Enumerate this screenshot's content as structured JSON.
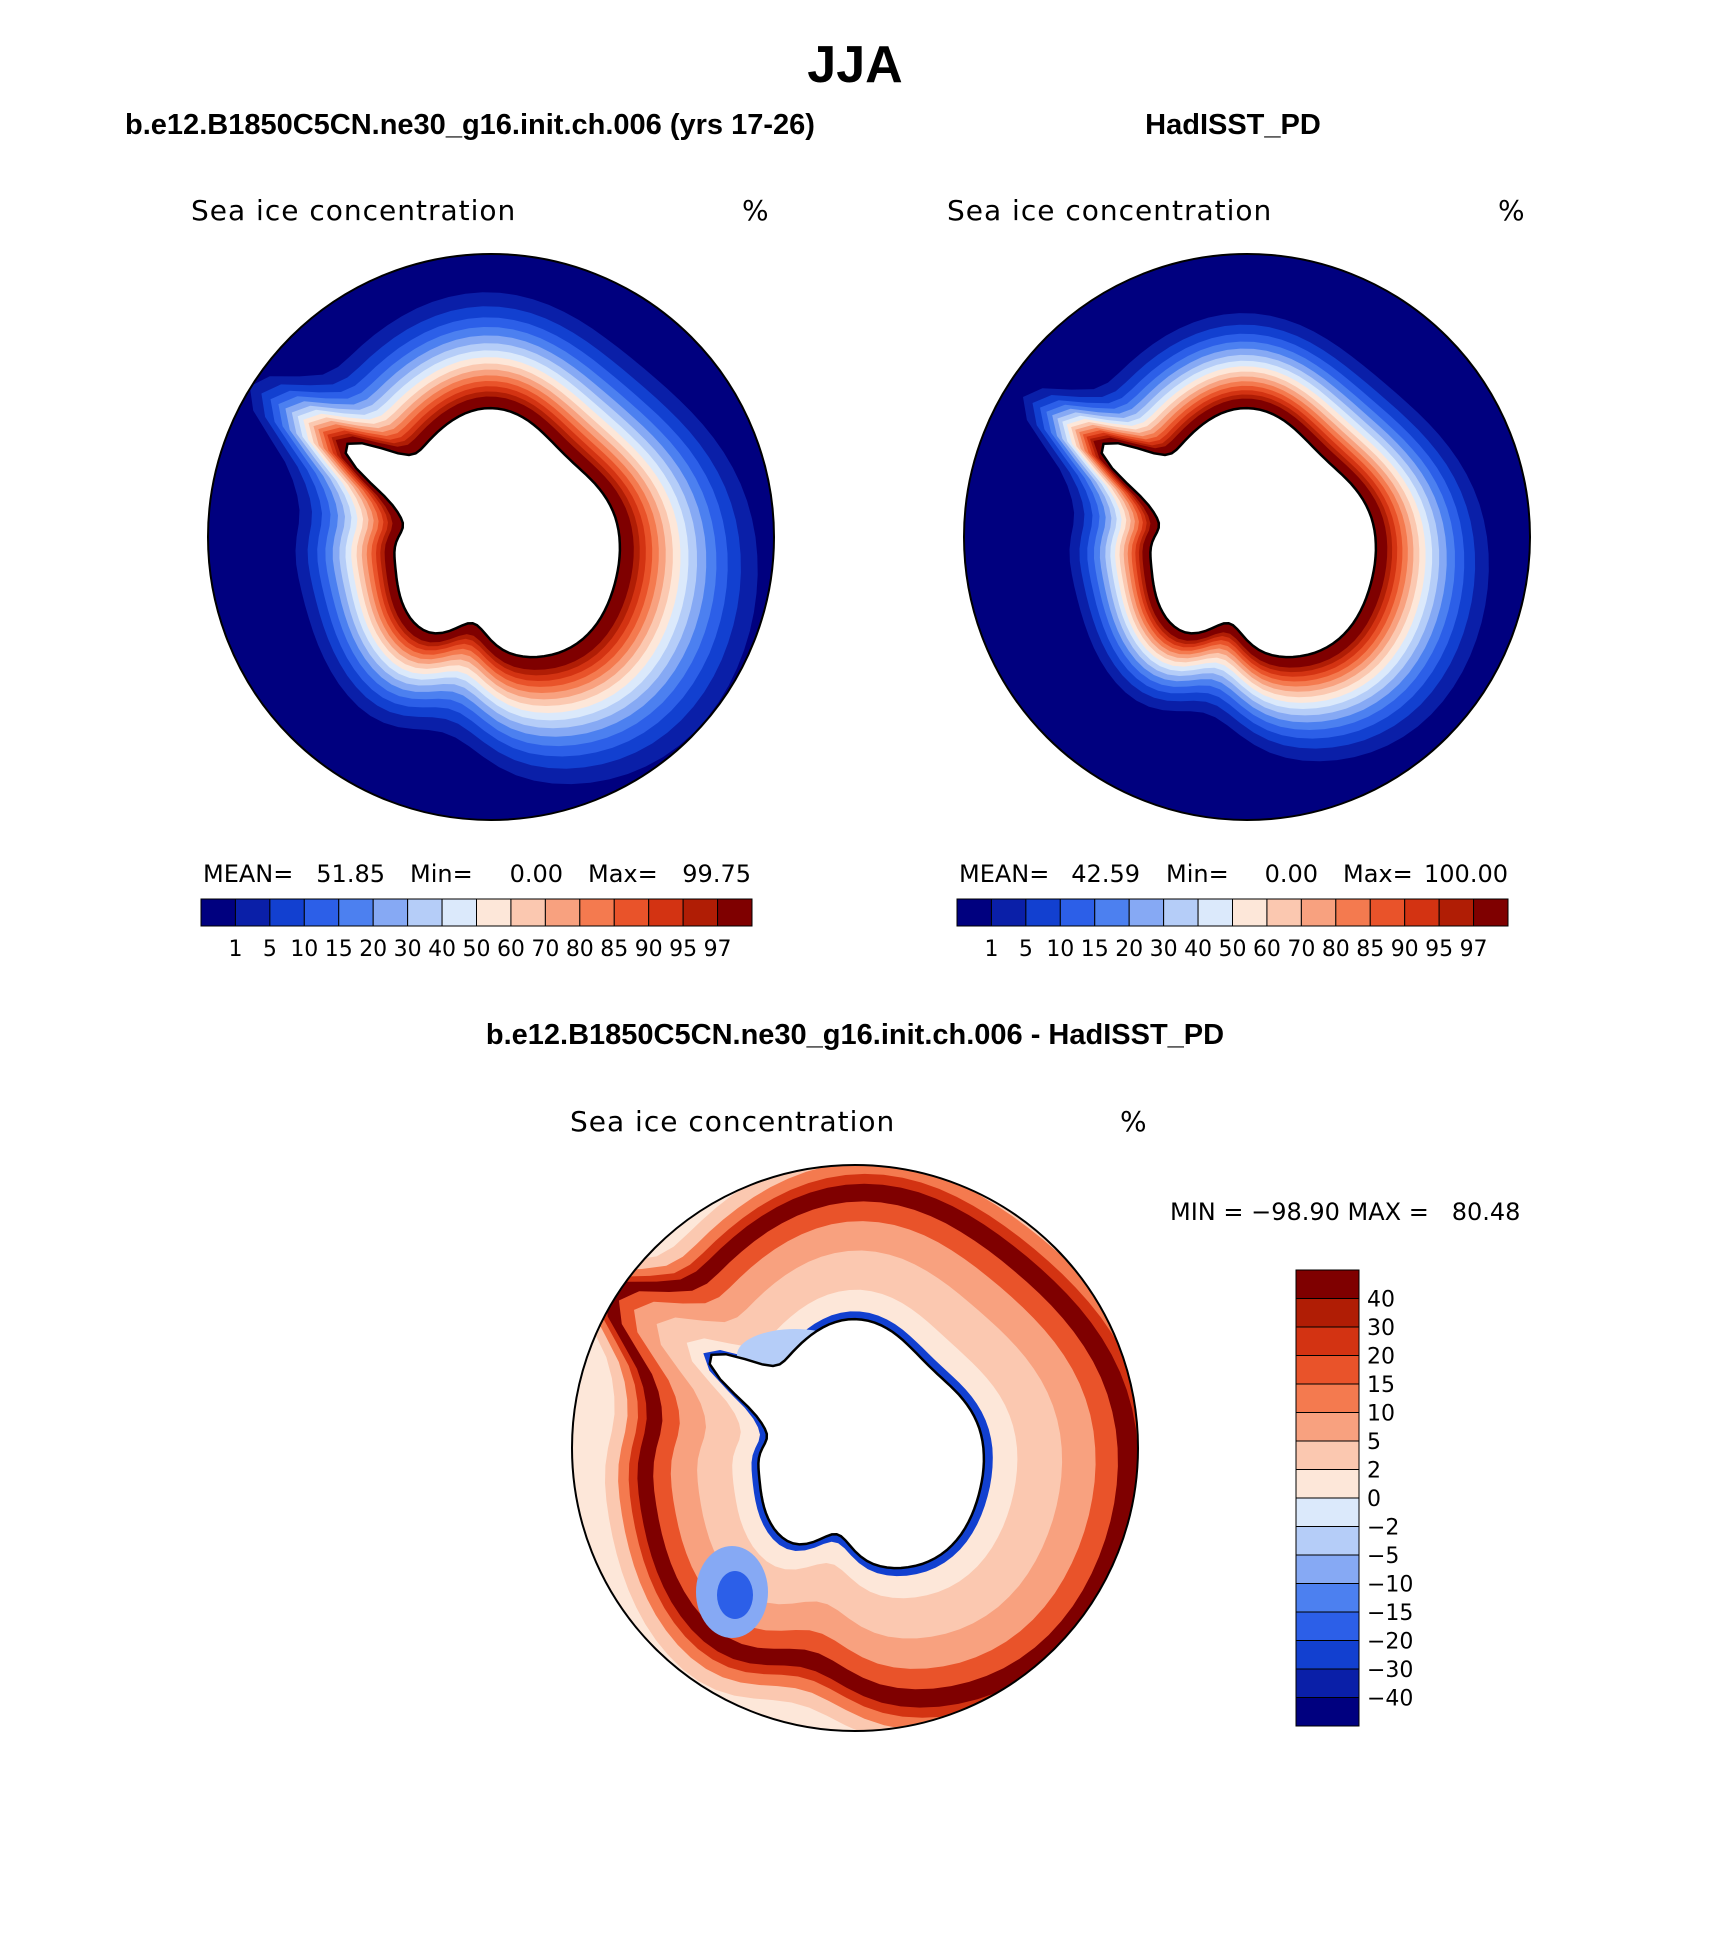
{
  "figure": {
    "title": "JJA",
    "panels": [
      {
        "id": "model",
        "subtitle": "b.e12.B1850C5CN.ne30_g16.init.ch.006 (yrs 17-26)",
        "left_label": "Sea ice concentration",
        "right_label": "%",
        "stats": {
          "mean_label": "MEAN=",
          "mean": "51.85",
          "min_label": "Min=",
          "min": "0.00",
          "max_label": "Max=",
          "max": "99.75"
        },
        "ice_edge_scale": 1.0
      },
      {
        "id": "obs",
        "subtitle": "HadISST_PD",
        "left_label": "Sea ice concentration",
        "right_label": "%",
        "stats": {
          "mean_label": "MEAN=",
          "mean": "42.59",
          "min_label": "Min=",
          "min": "0.00",
          "max_label": "Max=",
          "max": "100.00"
        },
        "ice_edge_scale": 0.82
      }
    ],
    "diff_panel": {
      "subtitle": "b.e12.B1850C5CN.ne30_g16.init.ch.006 - HadISST_PD",
      "left_label": "Sea ice concentration",
      "right_label": "%",
      "minmax_text": "MIN = −98.90 MAX =   80.48"
    },
    "colorbar_levels": [
      "1",
      "5",
      "10",
      "15",
      "20",
      "30",
      "40",
      "50",
      "60",
      "70",
      "80",
      "85",
      "90",
      "95",
      "97"
    ],
    "colorbar_colors": [
      "#00007f",
      "#0a1fa8",
      "#1240d0",
      "#2c5fe8",
      "#4c80f0",
      "#86a9f4",
      "#b5cdf8",
      "#dbe9fb",
      "#fde7d9",
      "#fbc8b0",
      "#f8a17f",
      "#f47a4f",
      "#e9532a",
      "#d33312",
      "#b01d05",
      "#7f0000"
    ],
    "diff_levels": [
      "40",
      "30",
      "20",
      "15",
      "10",
      "5",
      "2",
      "0",
      "−2",
      "−5",
      "−10",
      "−15",
      "−20",
      "−30",
      "−40"
    ],
    "diff_colors": [
      "#7f0000",
      "#b01d05",
      "#d33312",
      "#e9532a",
      "#f47a4f",
      "#f8a17f",
      "#fbc8b0",
      "#fde7d9",
      "#dbe9fb",
      "#b5cdf8",
      "#86a9f4",
      "#4c80f0",
      "#2c5fe8",
      "#1240d0",
      "#0a1fa8",
      "#00007f"
    ]
  }
}
